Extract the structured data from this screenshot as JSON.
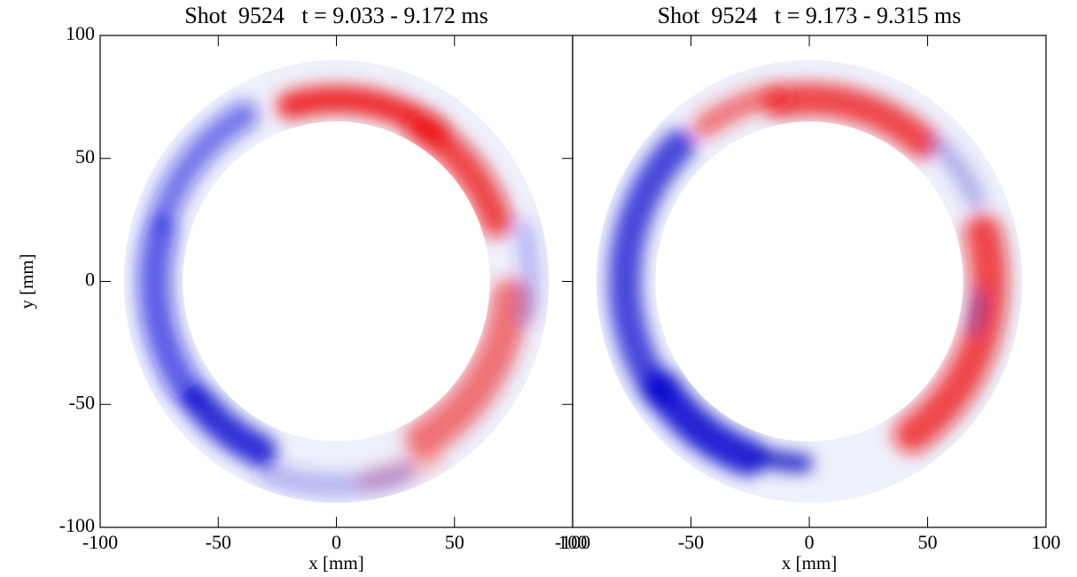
{
  "chart_data": [
    {
      "type": "image",
      "title": "Shot  9524   t = 9.033 - 9.172 ms",
      "xlabel": "x [mm]",
      "ylabel": "y [mm]",
      "xlim": [
        -100,
        100
      ],
      "ylim": [
        -100,
        100
      ],
      "xticks": [
        -100,
        -50,
        0,
        50,
        100
      ],
      "yticks": [
        -100,
        -50,
        0,
        50,
        100
      ]
    },
    {
      "type": "image",
      "title": "Shot  9524   t = 9.173 - 9.315 ms",
      "xlabel": "x [mm]",
      "xlim": [
        -100,
        100
      ],
      "ylim": [
        -100,
        100
      ],
      "xticks": [
        -100,
        -50,
        0,
        50,
        100
      ]
    }
  ]
}
